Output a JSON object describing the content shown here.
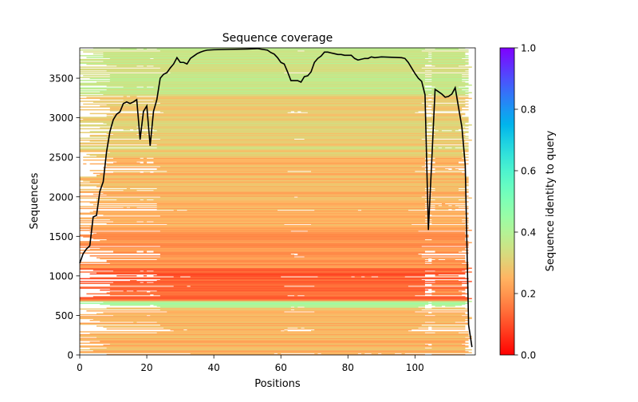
{
  "chart_data": {
    "type": "heatmap",
    "title": "Sequence coverage",
    "xlabel": "Positions",
    "ylabel": "Sequences",
    "xlim": [
      0,
      118
    ],
    "ylim": [
      0,
      3884
    ],
    "xticks": [
      "0",
      "20",
      "40",
      "60",
      "80",
      "100"
    ],
    "yticks": [
      "0",
      "500",
      "1000",
      "1500",
      "2000",
      "2500",
      "3000",
      "3500"
    ],
    "colorbar": {
      "label": "Sequence identity to query",
      "colormap": "rainbow_r",
      "range": [
        0,
        1
      ],
      "ticks": [
        "0.0",
        "0.2",
        "0.4",
        "0.6",
        "0.8",
        "1.0"
      ]
    },
    "identity_bands": [
      {
        "seq_from": 0,
        "seq_to": 600,
        "identity": 0.25
      },
      {
        "seq_from": 600,
        "seq_to": 680,
        "identity": 0.42
      },
      {
        "seq_from": 680,
        "seq_to": 1100,
        "identity": 0.17
      },
      {
        "seq_from": 1100,
        "seq_to": 1600,
        "identity": 0.2
      },
      {
        "seq_from": 1600,
        "seq_to": 2500,
        "identity": 0.25
      },
      {
        "seq_from": 2500,
        "seq_to": 3300,
        "identity": 0.3
      },
      {
        "seq_from": 3300,
        "seq_to": 3884,
        "identity": 0.36
      }
    ],
    "coverage_line": {
      "name": "coverage",
      "color": "#000000",
      "x": [
        0,
        1,
        2,
        3,
        4,
        5,
        6,
        7,
        8,
        9,
        10,
        11,
        12,
        13,
        14,
        15,
        16,
        17,
        18,
        19,
        20,
        21,
        22,
        23,
        24,
        25,
        26,
        27,
        28,
        29,
        30,
        31,
        32,
        33,
        34,
        35,
        36,
        37,
        38,
        40,
        45,
        50,
        53,
        56,
        57,
        58,
        59,
        60,
        61,
        62,
        63,
        64,
        65,
        66,
        67,
        68,
        69,
        70,
        71,
        72,
        73,
        74,
        75,
        76,
        77,
        78,
        79,
        80,
        81,
        82,
        83,
        84,
        85,
        86,
        87,
        88,
        90,
        96,
        97,
        98,
        99,
        100,
        101,
        102,
        103,
        104,
        105,
        106,
        107,
        108,
        109,
        110,
        111,
        112,
        113,
        114,
        115,
        116,
        117
      ],
      "y": [
        1160,
        1280,
        1340,
        1380,
        1745,
        1765,
        2070,
        2190,
        2570,
        2825,
        2975,
        3045,
        3075,
        3180,
        3200,
        3180,
        3200,
        3230,
        2725,
        3080,
        3150,
        2645,
        3080,
        3230,
        3500,
        3550,
        3570,
        3630,
        3680,
        3760,
        3700,
        3700,
        3680,
        3750,
        3780,
        3810,
        3830,
        3845,
        3855,
        3860,
        3865,
        3870,
        3875,
        3855,
        3825,
        3805,
        3760,
        3700,
        3680,
        3580,
        3470,
        3470,
        3470,
        3450,
        3520,
        3530,
        3580,
        3700,
        3750,
        3780,
        3830,
        3830,
        3820,
        3810,
        3800,
        3800,
        3790,
        3790,
        3790,
        3750,
        3730,
        3740,
        3750,
        3750,
        3770,
        3760,
        3770,
        3760,
        3750,
        3700,
        3630,
        3560,
        3500,
        3460,
        3290,
        1580,
        2450,
        3360,
        3330,
        3300,
        3260,
        3270,
        3300,
        3380,
        3130,
        2880,
        2400,
        380,
        100
      ]
    }
  }
}
